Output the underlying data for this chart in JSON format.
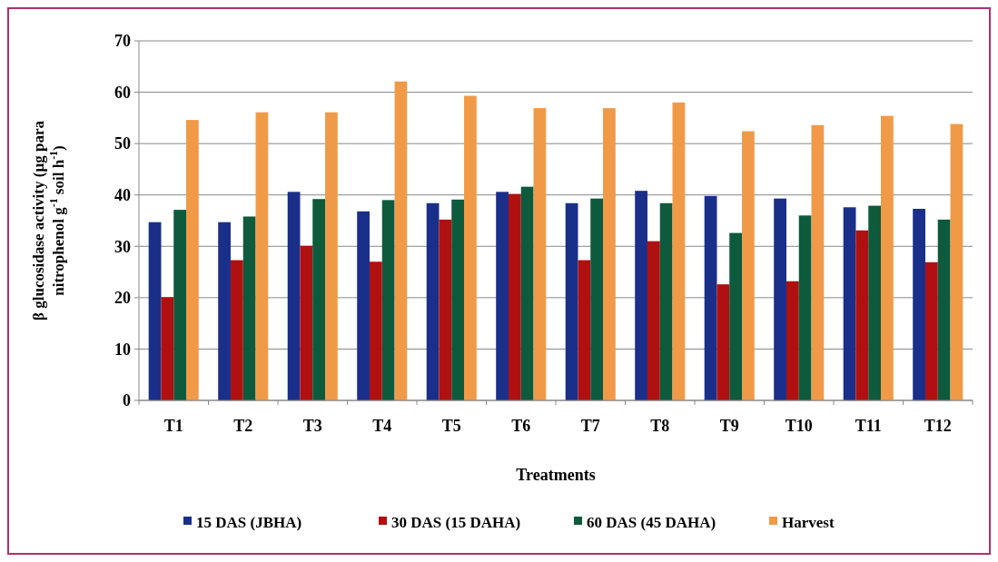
{
  "chart_data": {
    "type": "bar",
    "xlabel": "Treatments",
    "ylabel": "β glucosidase activity (µg para nitrophenol g$^{-1}$ soil h$^{-1}$)",
    "categories": [
      "T1",
      "T2",
      "T3",
      "T4",
      "T5",
      "T6",
      "T7",
      "T8",
      "T9",
      "T10",
      "T11",
      "T12"
    ],
    "series": [
      {
        "name": "15 DAS (JBHA)",
        "color": "#1a2f8a",
        "values": [
          34.7,
          34.7,
          40.6,
          36.8,
          38.4,
          40.6,
          38.4,
          40.8,
          39.8,
          39.3,
          37.6,
          37.3
        ]
      },
      {
        "name": "30 DAS (15 DAHA)",
        "color": "#b01010",
        "values": [
          20.1,
          27.3,
          30.1,
          27.0,
          35.2,
          40.2,
          27.3,
          31.0,
          22.6,
          23.2,
          33.1,
          26.9
        ]
      },
      {
        "name": "60 DAS (45 DAHA)",
        "color": "#0d5a3c",
        "values": [
          37.1,
          35.8,
          39.2,
          39.0,
          39.1,
          41.6,
          39.3,
          38.4,
          32.6,
          36.0,
          37.9,
          35.2
        ]
      },
      {
        "name": "Harvest",
        "color": "#f09a48",
        "values": [
          54.6,
          56.1,
          56.1,
          62.1,
          59.3,
          56.9,
          56.9,
          58.0,
          52.4,
          53.6,
          55.4,
          53.8
        ]
      }
    ],
    "ylim": [
      0,
      70
    ],
    "yticks": [
      0,
      10,
      20,
      30,
      40,
      50,
      60,
      70
    ],
    "grid": "y",
    "legend": "bottom"
  }
}
